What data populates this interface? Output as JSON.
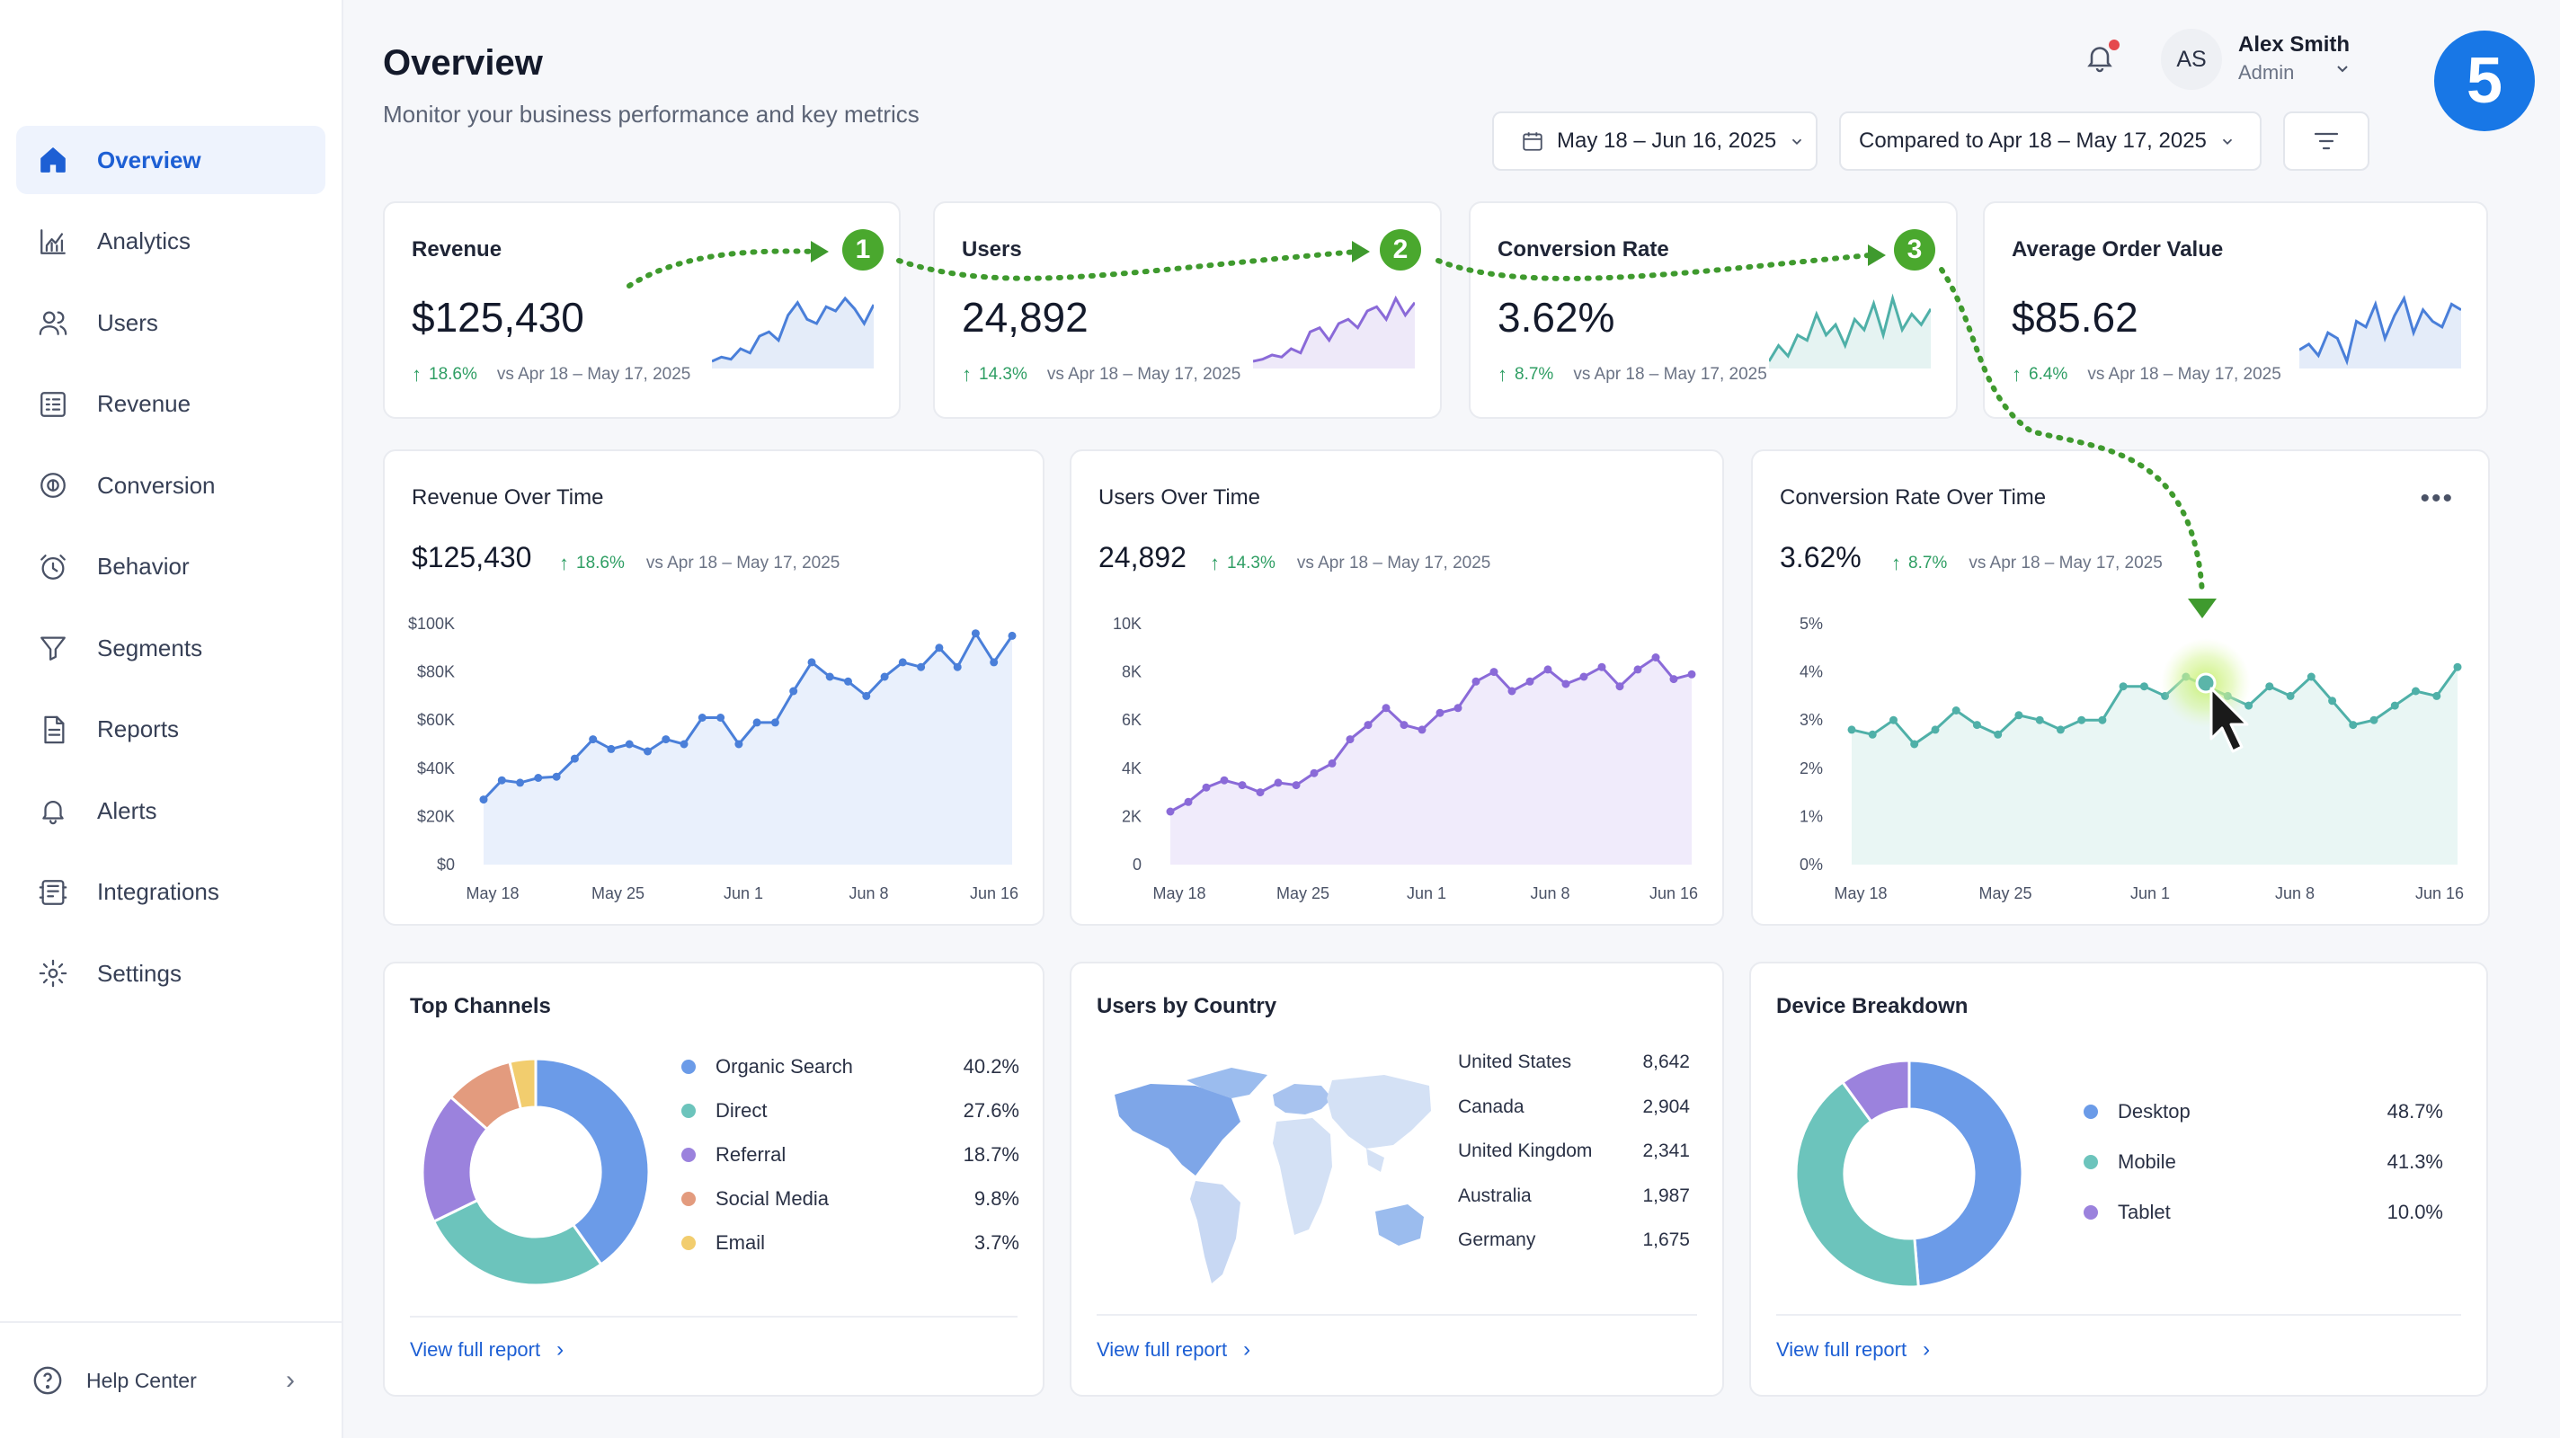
{
  "sidebar": {
    "items": [
      {
        "label": "Overview",
        "icon": "home-icon",
        "active": true
      },
      {
        "label": "Analytics",
        "icon": "analytics-icon"
      },
      {
        "label": "Users",
        "icon": "users-icon"
      },
      {
        "label": "Revenue",
        "icon": "revenue-icon"
      },
      {
        "label": "Conversion",
        "icon": "conversion-icon"
      },
      {
        "label": "Behavior",
        "icon": "behavior-icon"
      },
      {
        "label": "Segments",
        "icon": "funnel-icon"
      },
      {
        "label": "Reports",
        "icon": "report-icon"
      },
      {
        "label": "Alerts",
        "icon": "bell-icon"
      },
      {
        "label": "Integrations",
        "icon": "integrations-icon"
      },
      {
        "label": "Settings",
        "icon": "gear-icon"
      }
    ],
    "help": "Help Center"
  },
  "header": {
    "title": "Overview",
    "subtitle": "Monitor your business performance and key metrics",
    "user": {
      "initials": "AS",
      "name": "Alex Smith",
      "role": "Admin"
    },
    "date_range": "May 18 – Jun 16, 2025",
    "compare": "Compared to Apr 18 – May 17, 2025",
    "step_badge": "5"
  },
  "kpis": [
    {
      "label": "Revenue",
      "value": "$125,430",
      "change": "18.6%",
      "vs": "vs Apr 18 – May 17, 2025",
      "color": "#4a7fd9",
      "spark": [
        30,
        32,
        31,
        36,
        34,
        42,
        44,
        40,
        52,
        58,
        50,
        48,
        56,
        54,
        60,
        55,
        48,
        57
      ]
    },
    {
      "label": "Users",
      "value": "24,892",
      "change": "14.3%",
      "vs": "vs Apr 18 – May 17, 2025",
      "color": "#8a6ad8",
      "spark": [
        30,
        31,
        33,
        32,
        36,
        34,
        44,
        46,
        40,
        48,
        50,
        46,
        54,
        56,
        50,
        60,
        52,
        58
      ]
    },
    {
      "label": "Conversion Rate",
      "value": "3.62%",
      "change": "8.7%",
      "vs": "vs Apr 18 – May 17, 2025",
      "color": "#4fb0a8",
      "spark": [
        34,
        40,
        36,
        44,
        42,
        52,
        44,
        48,
        40,
        50,
        46,
        56,
        44,
        58,
        46,
        52,
        48,
        54
      ]
    },
    {
      "label": "Average Order Value",
      "value": "$85.62",
      "change": "6.4%",
      "vs": "vs Apr 18 – May 17, 2025",
      "color": "#4a7fd9",
      "spark": [
        40,
        42,
        38,
        46,
        44,
        36,
        50,
        48,
        56,
        44,
        52,
        58,
        46,
        54,
        50,
        48,
        56,
        54
      ]
    }
  ],
  "step_markers": [
    "1",
    "2",
    "3"
  ],
  "charts": [
    {
      "title": "Revenue Over Time",
      "value": "$125,430",
      "change": "18.6%",
      "vs": "vs Apr 18 – May 17, 2025",
      "color": "#4a7fd9",
      "fill": "#e3ecfb",
      "y_ticks": [
        "$0",
        "$20K",
        "$40K",
        "$60K",
        "$80K",
        "$100K"
      ],
      "y_max": 100000,
      "x_ticks": [
        "May 18",
        "May 25",
        "Jun 1",
        "Jun 8",
        "Jun 16"
      ],
      "values": [
        27000,
        35000,
        34000,
        36000,
        36500,
        44000,
        52000,
        48000,
        50000,
        47000,
        52000,
        50000,
        61000,
        61000,
        50000,
        59000,
        59000,
        72000,
        84000,
        78000,
        76000,
        70000,
        78000,
        84000,
        82000,
        90000,
        82000,
        96000,
        84000,
        95000
      ]
    },
    {
      "title": "Users Over Time",
      "value": "24,892",
      "change": "14.3%",
      "vs": "vs Apr 18 – May 17, 2025",
      "color": "#8a6ad8",
      "fill": "#ece6fa",
      "y_ticks": [
        "0",
        "2K",
        "4K",
        "6K",
        "8K",
        "10K"
      ],
      "y_max": 10000,
      "x_ticks": [
        "May 18",
        "May 25",
        "Jun 1",
        "Jun 8",
        "Jun 16"
      ],
      "values": [
        2200,
        2600,
        3200,
        3500,
        3300,
        3000,
        3400,
        3300,
        3800,
        4200,
        5200,
        5800,
        6500,
        5800,
        5600,
        6300,
        6500,
        7600,
        8000,
        7200,
        7600,
        8100,
        7500,
        7800,
        8200,
        7400,
        8100,
        8600,
        7700,
        7900
      ]
    },
    {
      "title": "Conversion Rate Over Time",
      "value": "3.62%",
      "change": "8.7%",
      "vs": "vs Apr 18 – May 17, 2025",
      "color": "#4fb0a8",
      "fill": "#e4f4f1",
      "y_ticks": [
        "0%",
        "1%",
        "2%",
        "3%",
        "4%",
        "5%"
      ],
      "y_max": 5,
      "x_ticks": [
        "May 18",
        "May 25",
        "Jun 1",
        "Jun 8",
        "Jun 16"
      ],
      "values": [
        2.8,
        2.7,
        3.0,
        2.5,
        2.8,
        3.2,
        2.9,
        2.7,
        3.1,
        3.0,
        2.8,
        3.0,
        3.0,
        3.7,
        3.7,
        3.5,
        3.9,
        3.7,
        3.5,
        3.3,
        3.7,
        3.5,
        3.9,
        3.4,
        2.9,
        3.0,
        3.3,
        3.6,
        3.5,
        4.1
      ]
    }
  ],
  "channels": {
    "title": "Top Channels",
    "items": [
      {
        "name": "Organic Search",
        "pct": "40.2%",
        "value": 40.2,
        "color": "#6b9be8"
      },
      {
        "name": "Direct",
        "pct": "27.6%",
        "value": 27.6,
        "color": "#6cc4bc"
      },
      {
        "name": "Referral",
        "pct": "18.7%",
        "value": 18.7,
        "color": "#9b82dd"
      },
      {
        "name": "Social Media",
        "pct": "9.8%",
        "value": 9.8,
        "color": "#e39b7e"
      },
      {
        "name": "Email",
        "pct": "3.7%",
        "value": 3.7,
        "color": "#f2cd6e"
      }
    ],
    "link": "View full report"
  },
  "countries": {
    "title": "Users by Country",
    "items": [
      {
        "name": "United States",
        "value": "8,642"
      },
      {
        "name": "Canada",
        "value": "2,904"
      },
      {
        "name": "United Kingdom",
        "value": "2,341"
      },
      {
        "name": "Australia",
        "value": "1,987"
      },
      {
        "name": "Germany",
        "value": "1,675"
      }
    ],
    "link": "View full report"
  },
  "devices": {
    "title": "Device Breakdown",
    "items": [
      {
        "name": "Desktop",
        "pct": "48.7%",
        "value": 48.7,
        "color": "#6b9be8"
      },
      {
        "name": "Mobile",
        "pct": "41.3%",
        "value": 41.3,
        "color": "#6cc4bc"
      },
      {
        "name": "Tablet",
        "pct": "10.0%",
        "value": 10.0,
        "color": "#9b82dd"
      }
    ],
    "link": "View full report"
  },
  "chart_data": [
    {
      "type": "line",
      "x": [
        "May 18",
        "May 25",
        "Jun 1",
        "Jun 8",
        "Jun 16"
      ],
      "ylim": [
        0,
        100000
      ],
      "grid": false
    },
    {
      "type": "pie",
      "categories": [
        "Organic Search",
        "Direct",
        "Referral",
        "Social Media",
        "Email"
      ],
      "values": [
        40.2,
        27.6,
        18.7,
        9.8,
        3.7
      ]
    },
    {
      "type": "pie",
      "categories": [
        "Desktop",
        "Mobile",
        "Tablet"
      ],
      "values": [
        48.7,
        41.3,
        10.0
      ]
    }
  ]
}
